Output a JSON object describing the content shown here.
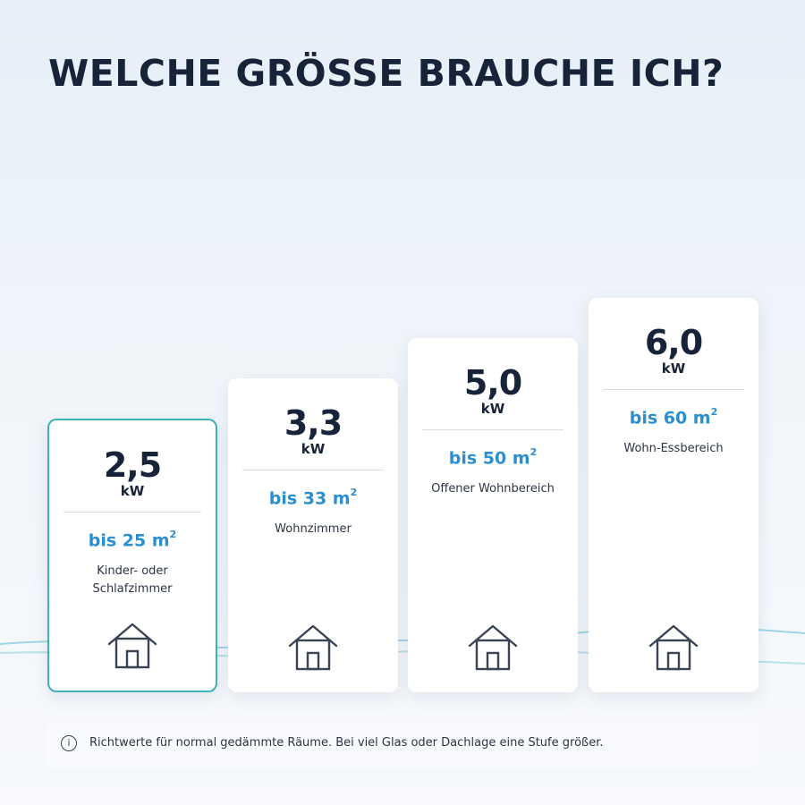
{
  "title": "WELCHE GRÖSSE BRAUCHE ICH?",
  "colors": {
    "title": "#172338",
    "accent": "#2b8fcf",
    "selected_border": "#3fb4b6"
  },
  "cards": [
    {
      "power": "2,5",
      "unit": "kW",
      "area": "bis 25 m",
      "area_sup": "2",
      "room": "Kinder- oder Schlafzimmer",
      "icon": "house-icon",
      "selected": true
    },
    {
      "power": "3,3",
      "unit": "kW",
      "area": "bis 33 m",
      "area_sup": "2",
      "room": "Wohnzimmer",
      "icon": "house-icon",
      "selected": false
    },
    {
      "power": "5,0",
      "unit": "kW",
      "area": "bis 50 m",
      "area_sup": "2",
      "room": "Offener Wohnbereich",
      "icon": "house-icon",
      "selected": false
    },
    {
      "power": "6,0",
      "unit": "kW",
      "area": "bis 60 m",
      "area_sup": "2",
      "room": "Wohn-Essbereich",
      "icon": "house-icon",
      "selected": false
    }
  ],
  "note": {
    "icon": "info-icon",
    "icon_glyph": "i",
    "text": "Richtwerte für normal gedämmte Räume. Bei viel Glas oder Dachlage eine Stufe größer."
  }
}
